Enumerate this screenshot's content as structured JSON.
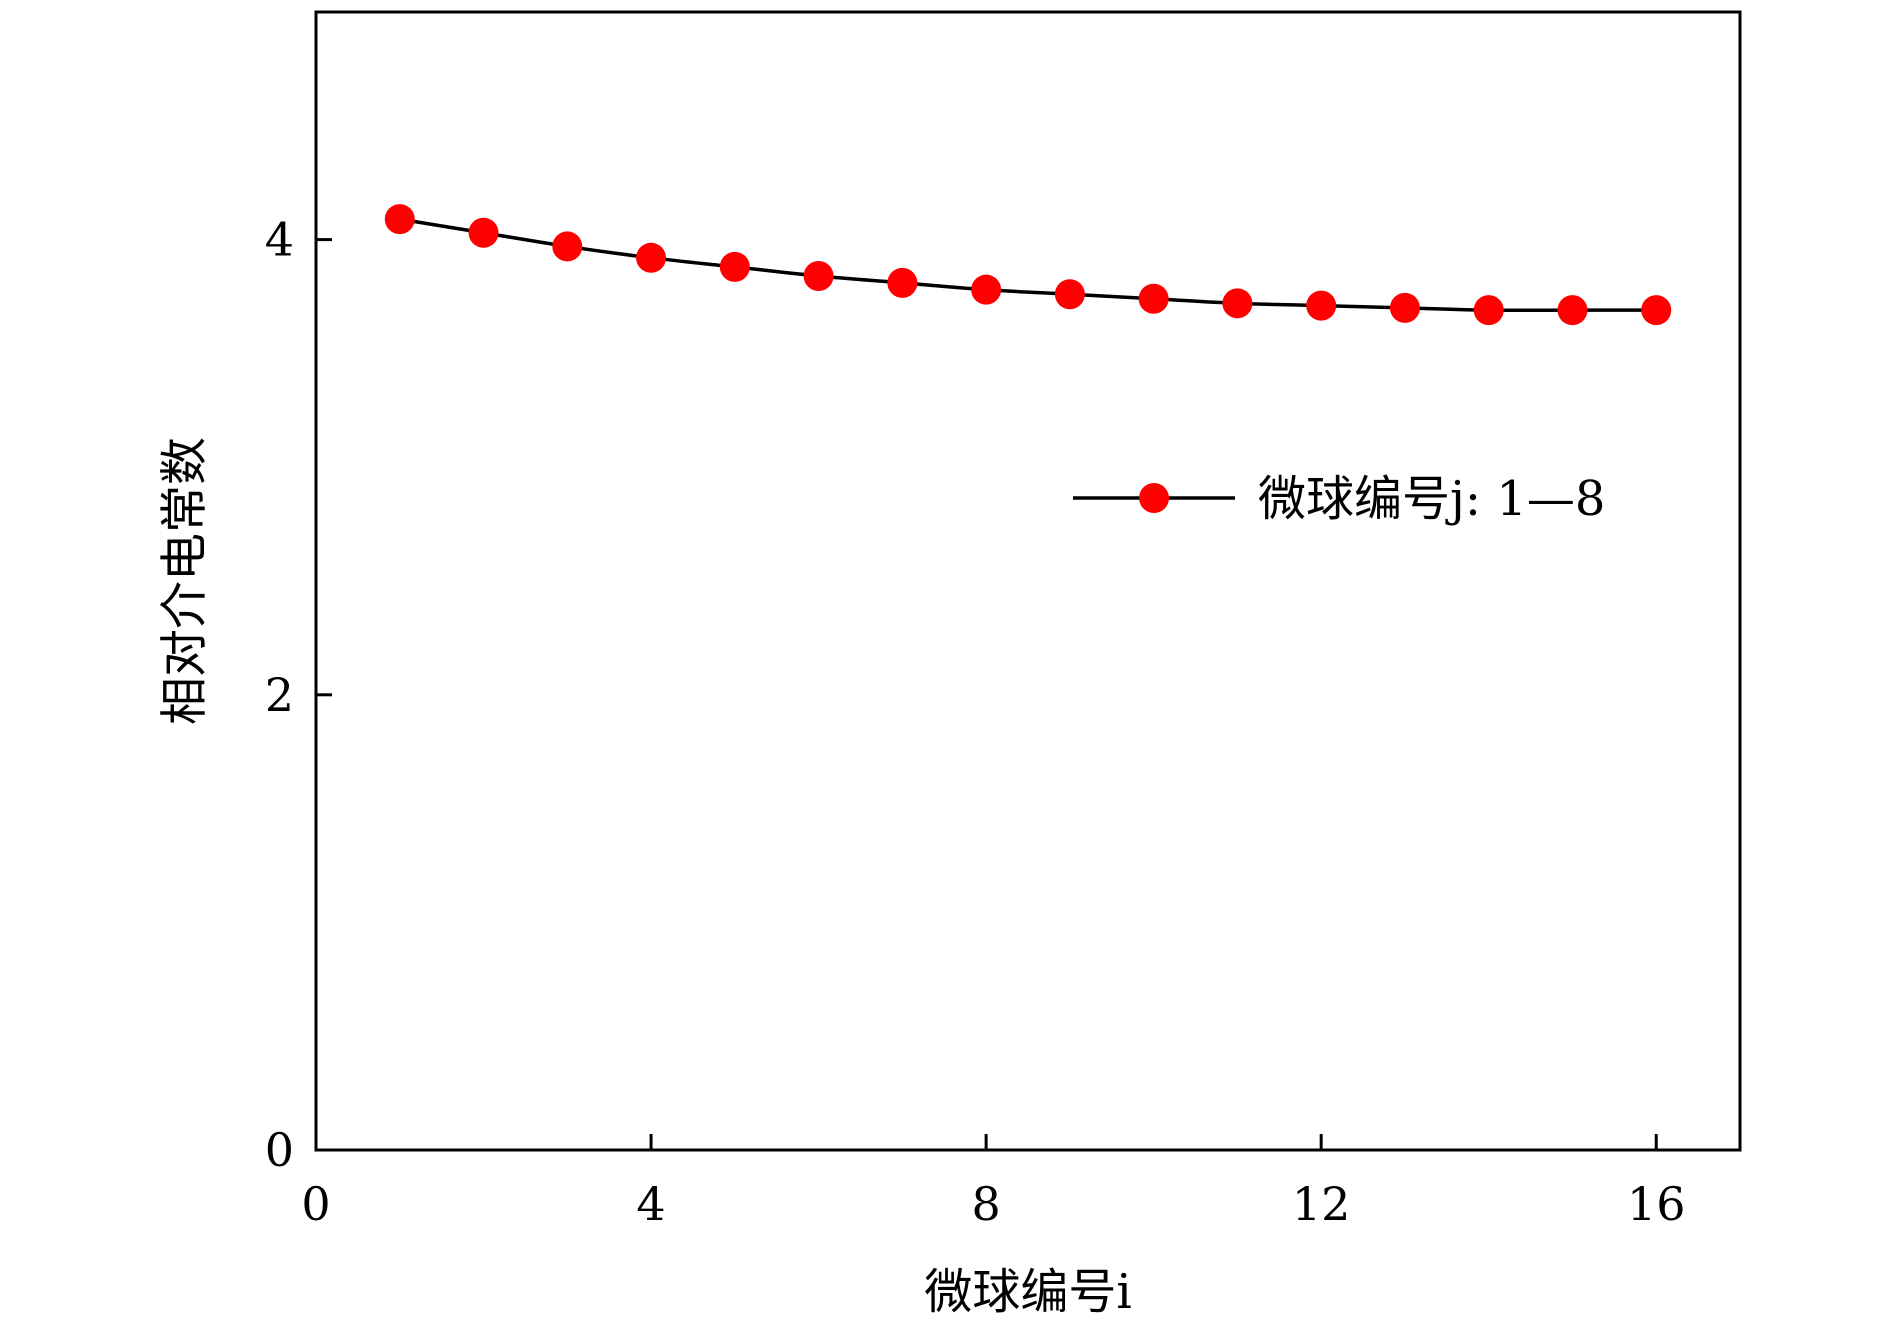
{
  "chart_data": {
    "type": "line",
    "title": "",
    "xlabel": "微球编号i",
    "ylabel": "相对介电常数",
    "xlim": [
      0,
      17
    ],
    "ylim": [
      0,
      5
    ],
    "xticks": [
      0,
      4,
      8,
      12,
      16
    ],
    "yticks": [
      0,
      2,
      4
    ],
    "xtick_labels": [
      "0",
      "4",
      "8",
      "12",
      "16"
    ],
    "ytick_labels": [
      "0",
      "2",
      "4"
    ],
    "grid": false,
    "legend_position": "right",
    "series": [
      {
        "name": "微球编号j: 1—8",
        "line_color": "#000000",
        "marker_color": "#ff0000",
        "marker": "circle",
        "x": [
          1,
          2,
          3,
          4,
          5,
          6,
          7,
          8,
          9,
          10,
          11,
          12,
          13,
          14,
          15,
          16
        ],
        "y": [
          4.09,
          4.03,
          3.97,
          3.92,
          3.88,
          3.84,
          3.81,
          3.78,
          3.76,
          3.74,
          3.72,
          3.71,
          3.7,
          3.69,
          3.69,
          3.69
        ]
      }
    ]
  }
}
